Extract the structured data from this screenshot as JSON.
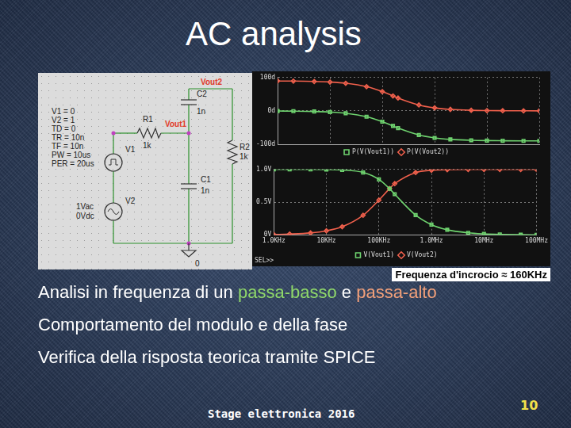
{
  "slide": {
    "title": "AC analysis",
    "annotation": "Frequenza d'incrocio ≈ 160KHz",
    "bullets": [
      [
        {
          "text": "Analisi in frequenza di un "
        },
        {
          "text": "passa-basso",
          "color": "#8fd86a"
        },
        {
          "text": " e "
        },
        {
          "text": "passa-alto",
          "color": "#f2a07a"
        }
      ],
      [
        {
          "text": "Comportamento del modulo e della fase"
        }
      ],
      [
        {
          "text": "Verifica della risposta teorica tramite SPICE"
        }
      ]
    ],
    "footer": "Stage elettronica 2016",
    "page": 10
  },
  "schematic": {
    "parameters": [
      "V1 = 0",
      "V2 = 1",
      "TD = 0",
      "TR = 10n",
      "TF = 10n",
      "PW = 10us",
      "PER = 20us"
    ],
    "labels": [
      {
        "text": "V1"
      },
      {
        "text": "V2"
      },
      {
        "text": "1Vac"
      },
      {
        "text": "0Vdc"
      },
      {
        "text": "R1"
      },
      {
        "text": "1k"
      },
      {
        "text": "C2"
      },
      {
        "text": "1n"
      },
      {
        "text": "C1"
      },
      {
        "text": "1n"
      },
      {
        "text": "R2"
      },
      {
        "text": "1k"
      },
      {
        "text": "Vout1",
        "color": "#e23a2a"
      },
      {
        "text": "Vout2",
        "color": "#e23a2a"
      },
      {
        "text": "0"
      }
    ]
  },
  "chart_data": [
    {
      "type": "line",
      "log": "x",
      "x": [
        1000,
        2000,
        5000,
        10000,
        20000,
        50000,
        100000,
        160000,
        200000,
        500000,
        1000000,
        2000000,
        5000000,
        10000000,
        20000000,
        50000000,
        100000000
      ],
      "series": [
        {
          "name": "P(V(Vout1))",
          "color": "#6fd36f",
          "marker": "square",
          "values": [
            -0.4,
            -0.7,
            -1.8,
            -3.6,
            -7.2,
            -17.4,
            -32.2,
            -45.2,
            -51.5,
            -72.3,
            -81.0,
            -85.5,
            -88.2,
            -89.1,
            -89.5,
            -89.8,
            -89.9
          ]
        },
        {
          "name": "P(V(Vout2))",
          "color": "#f0604c",
          "marker": "diamond",
          "values": [
            89.6,
            89.3,
            88.2,
            86.4,
            82.8,
            72.6,
            57.8,
            44.8,
            38.5,
            17.7,
            9.0,
            4.5,
            1.8,
            0.9,
            0.5,
            0.2,
            0.1
          ]
        }
      ],
      "xlim": [
        1000,
        100000000
      ],
      "xticks": [
        1000,
        10000,
        100000,
        1000000,
        10000000,
        100000000
      ],
      "ylim": [
        -100,
        100
      ],
      "yticks": [
        {
          "value": 100,
          "label": "100d"
        },
        {
          "value": 0,
          "label": "0d"
        },
        {
          "value": -100,
          "label": "-100d"
        }
      ],
      "grid": true,
      "legend": "bottom",
      "tick_labels": "y"
    },
    {
      "type": "line",
      "log": "x",
      "annotations": [
        "SEL>>"
      ],
      "x": [
        1000,
        2000,
        5000,
        10000,
        20000,
        50000,
        100000,
        160000,
        200000,
        500000,
        1000000,
        2000000,
        5000000,
        10000000,
        20000000,
        50000000,
        100000000
      ],
      "series": [
        {
          "name": "V(Vout1)",
          "color": "#6fd36f",
          "marker": "square",
          "values": [
            1.0,
            1.0,
            1.0,
            0.998,
            0.992,
            0.954,
            0.847,
            0.705,
            0.622,
            0.303,
            0.157,
            0.079,
            0.032,
            0.016,
            0.008,
            0.003,
            0.002
          ]
        },
        {
          "name": "V(Vout2)",
          "color": "#f0604c",
          "marker": "diamond",
          "values": [
            0.006,
            0.013,
            0.031,
            0.063,
            0.125,
            0.3,
            0.532,
            0.709,
            0.783,
            0.953,
            0.988,
            0.997,
            1.0,
            1.0,
            1.0,
            1.0,
            1.0
          ]
        }
      ],
      "xlim": [
        1000,
        100000000
      ],
      "xticks": [
        {
          "value": 1000,
          "label": "1.0KHz"
        },
        {
          "value": 10000,
          "label": "10KHz"
        },
        {
          "value": 100000,
          "label": "100KHz"
        },
        {
          "value": 1000000,
          "label": "1.0MHz"
        },
        {
          "value": 10000000,
          "label": "10MHz"
        },
        {
          "value": 100000000,
          "label": "100MHz"
        }
      ],
      "ylim": [
        0,
        1
      ],
      "yticks": [
        {
          "value": 0,
          "label": "0V"
        },
        {
          "value": 0.5,
          "label": "0.5V"
        },
        {
          "value": 1,
          "label": "1.0V"
        }
      ],
      "grid": true,
      "legend": "bottom",
      "tick_labels": true
    }
  ]
}
